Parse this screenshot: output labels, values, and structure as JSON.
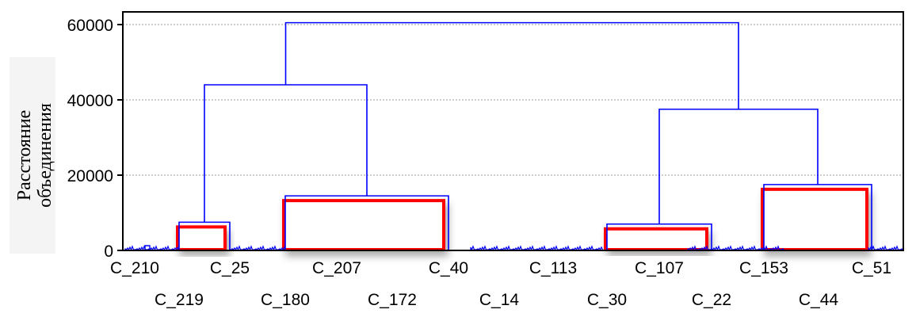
{
  "chart_data": {
    "type": "dendrogram",
    "ylabel_lines": [
      "Расстояние",
      "объединения"
    ],
    "ylim": [
      0,
      62000
    ],
    "yticks": [
      0,
      20000,
      40000,
      60000
    ],
    "ytick_labels": [
      "0",
      "20000",
      "40000",
      "60000"
    ],
    "grid": true,
    "x_labels": [
      "C_210",
      "C_219",
      "C_25",
      "C_180",
      "C_207",
      "C_172",
      "C_40",
      "C_14",
      "C_113",
      "C_30",
      "C_107",
      "C_22",
      "C_153",
      "C_44",
      "C_51"
    ],
    "clusters": [
      {
        "name": "A",
        "left": "C_219",
        "right": "C_25",
        "height": 7500
      },
      {
        "name": "B",
        "left": "C_180",
        "right": "C_40",
        "height": 14500
      },
      {
        "name": "C",
        "left": "C_30",
        "right": "C_22",
        "height": 7000
      },
      {
        "name": "D",
        "left": "C_153",
        "right": "C_51",
        "height": 17500
      }
    ],
    "merges": [
      {
        "left": "A",
        "right": "B",
        "height": 44000
      },
      {
        "left": "C",
        "right": "D",
        "height": 37500
      },
      {
        "left": "AB",
        "right": "CD",
        "height": 60500
      }
    ],
    "colors": {
      "links": "#0000ff",
      "highlight": "#ff0000",
      "grid": "#999999",
      "frame": "#000000"
    }
  }
}
